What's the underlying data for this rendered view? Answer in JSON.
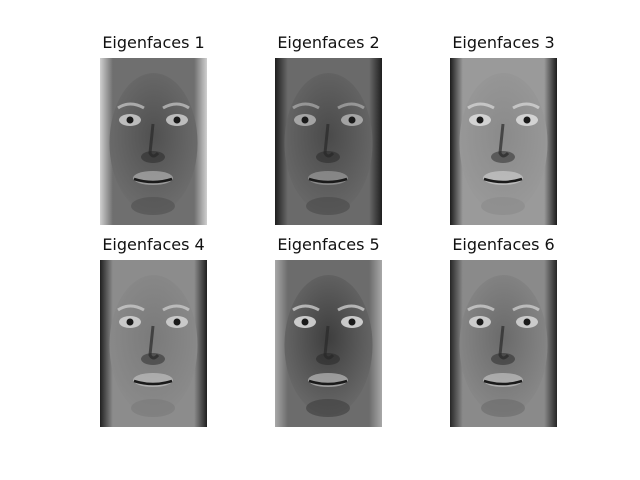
{
  "panels": [
    {
      "title": "Eigenfaces 1",
      "background": "#6f6f6f",
      "face_tone": "#505050",
      "eye_tone": "#dcdcdc",
      "edge_tone": "#cfcfcf"
    },
    {
      "title": "Eigenfaces 2",
      "background": "#6a6a6a",
      "face_tone": "#4a4a4a",
      "eye_tone": "#bdbdbd",
      "edge_tone": "#1e1e1e"
    },
    {
      "title": "Eigenfaces 3",
      "background": "#9a9a9a",
      "face_tone": "#8a8a8a",
      "eye_tone": "#e8e8e8",
      "edge_tone": "#1c1c1c"
    },
    {
      "title": "Eigenfaces 4",
      "background": "#8c8c8c",
      "face_tone": "#7a7a7a",
      "eye_tone": "#e0e0e0",
      "edge_tone": "#202020"
    },
    {
      "title": "Eigenfaces 5",
      "background": "#6c6c6c",
      "face_tone": "#3e3e3e",
      "eye_tone": "#f2f2f2",
      "edge_tone": "#a8a8a8"
    },
    {
      "title": "Eigenfaces 6",
      "background": "#8a8a8a",
      "face_tone": "#6a6a6a",
      "eye_tone": "#e6e6e6",
      "edge_tone": "#262626"
    }
  ]
}
